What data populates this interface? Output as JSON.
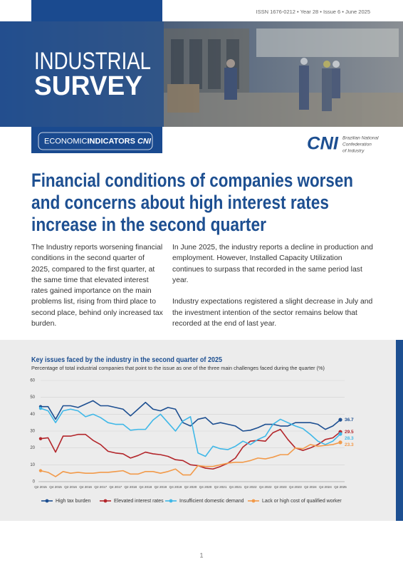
{
  "header": {
    "issn": "ISSN 1676-0212 • Year 28 • Issue 6 • June 2025",
    "title_line1": "INDUSTRIAL",
    "title_line2": "SURVEY",
    "badge": {
      "part1": "ECONOMIC",
      "part2": "INDICATORS",
      "part3": "CNI"
    },
    "logo": {
      "mark": "CNI",
      "lines": [
        "Brazilian National",
        "Confederation",
        "of Industry"
      ]
    }
  },
  "headline": [
    "Financial conditions of companies worsen",
    "and concerns about high interest rates",
    "increase in the second quarter"
  ],
  "body": {
    "left": [
      "The Industry reports worsening financial conditions in the second quarter of 2025, compared to the first quarter, at the same time that elevated interest rates gained importance on the main problems list, rising from third place to second place, behind only increased tax burden."
    ],
    "right": [
      "In June 2025, the industry reports a decline in production and employment. However, Installed Capacity Utilization continues to surpass that recorded in the same period last year.",
      "Industry expectations registered a slight decrease in July and the investment intention of the sector remains below that recorded at the end of last year."
    ]
  },
  "chart_data": {
    "type": "line",
    "title": "Key issues faced by the industry in the second quarter of 2025",
    "subtitle": "Percentage of total industrial companies that point to the issue as one of the three main challenges faced during the quarter (%)",
    "categories": [
      "Q2 2015",
      null,
      "Q4 2015",
      null,
      "Q2 2016",
      null,
      "Q4 2016",
      null,
      "Q2 2017",
      null,
      "Q4 2017",
      null,
      "Q2 2018",
      null,
      "Q4 2018",
      null,
      "Q2 2019",
      null,
      "Q4 2019",
      null,
      "Q2 2020",
      null,
      "Q4 2020",
      null,
      "Q2 2021",
      null,
      "Q4 2021",
      null,
      "Q2 2022",
      null,
      "Q4 2022",
      null,
      "Q2 2023",
      null,
      "Q4 2023",
      null,
      "Q2 2024",
      null,
      "Q4 2024",
      null,
      "Q2 2025"
    ],
    "ylim": [
      0,
      60
    ],
    "yticks": [
      0,
      10,
      20,
      30,
      40,
      50,
      60
    ],
    "grid": true,
    "legend": "bottom",
    "series": [
      {
        "name": "High tax burden",
        "color": "#1d4f91",
        "values": [
          44.5,
          44.5,
          37,
          45,
          45,
          44,
          46,
          48,
          45,
          45,
          44,
          43,
          39,
          43,
          47,
          43,
          42,
          44,
          43,
          35,
          33,
          37,
          38,
          34,
          35,
          34,
          33,
          30,
          30.5,
          32,
          34,
          34,
          33,
          33,
          35,
          35,
          35,
          34,
          31,
          33,
          36.7
        ]
      },
      {
        "name": "Elevated interest rates",
        "color": "#b3262b",
        "values": [
          25.5,
          26,
          17.5,
          27,
          27,
          28,
          28,
          24.5,
          22,
          18,
          17,
          16.5,
          14,
          15.5,
          17.5,
          16.5,
          16,
          15,
          13,
          12.5,
          10,
          9.5,
          8,
          7.5,
          9,
          11,
          14,
          20.5,
          24,
          24.5,
          24,
          29,
          31,
          25,
          20,
          18.5,
          20,
          22,
          25,
          26,
          29.5
        ]
      },
      {
        "name": "Insufficient domestic demand",
        "color": "#3fb8e8",
        "values": [
          43.5,
          42,
          35,
          42,
          43,
          42,
          38.5,
          40,
          38,
          35,
          34,
          34,
          30.5,
          31,
          31,
          36.5,
          40,
          35,
          30,
          36,
          38.5,
          17,
          15,
          21,
          19.5,
          19,
          21,
          24,
          22,
          25,
          27,
          34,
          37,
          35,
          33,
          31.5,
          28,
          24,
          22,
          24,
          28.3
        ]
      },
      {
        "name": "Lack or high cost of qualified worker",
        "color": "#f29a4a",
        "values": [
          6.5,
          5.5,
          3,
          6,
          5,
          5.5,
          5,
          5,
          5.5,
          5.5,
          6,
          6.5,
          4.5,
          4.5,
          6,
          6,
          5,
          6,
          7.5,
          4,
          4,
          9.5,
          9,
          9,
          10,
          11,
          11.5,
          11.5,
          12.5,
          14,
          13.5,
          14.5,
          16,
          16,
          20,
          19.5,
          22,
          21,
          21.5,
          22,
          23.3
        ]
      }
    ]
  },
  "footer": {
    "page": "1"
  }
}
